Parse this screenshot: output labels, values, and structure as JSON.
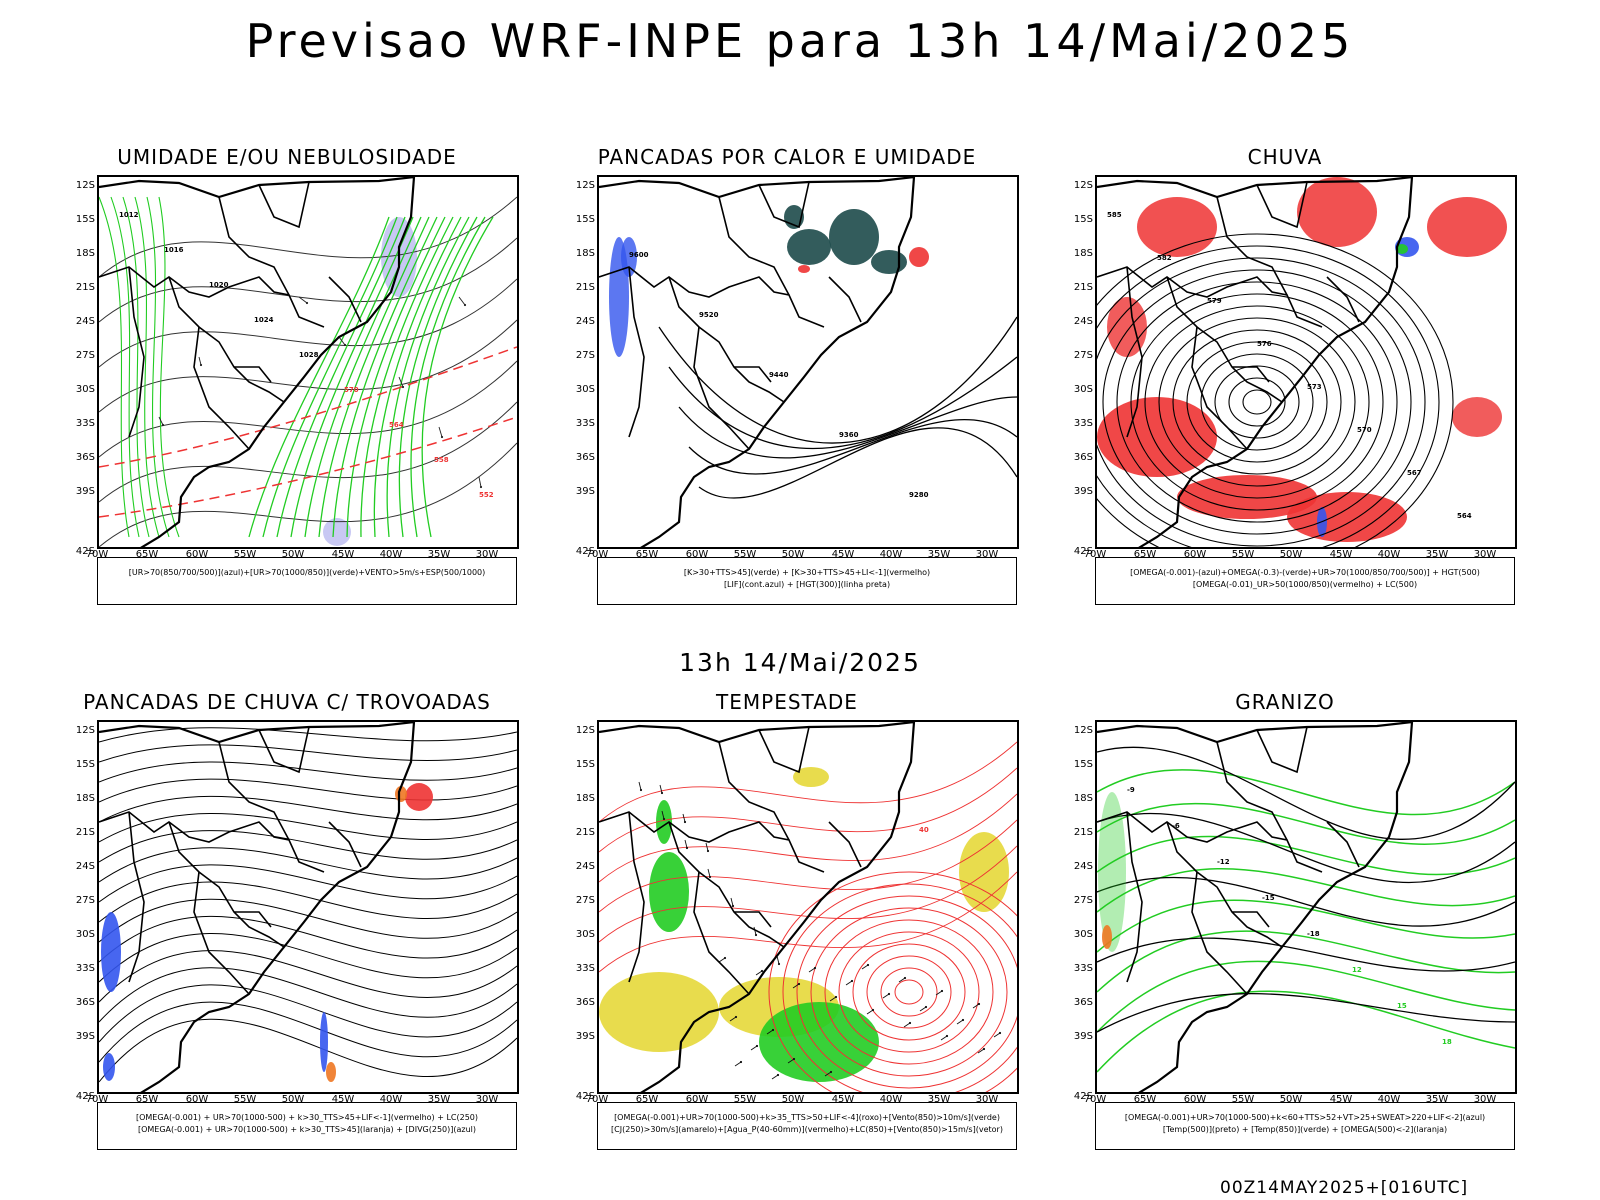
{
  "title": "Previsao WRF-INPE  para 13h 14/Mai/2025",
  "mid_title": "13h 14/Mai/2025",
  "footer": "00Z14MAY2025+[016UTC]",
  "lat_labels": [
    "12S",
    "15S",
    "18S",
    "21S",
    "24S",
    "27S",
    "30S",
    "33S",
    "36S",
    "39S",
    "42S"
  ],
  "lon_labels": [
    "70W",
    "65W",
    "60W",
    "55W",
    "50W",
    "45W",
    "40W",
    "35W",
    "30W"
  ],
  "colors": {
    "red": "#ee3333",
    "green": "#22cc22",
    "blue": "#3355ee",
    "dark_teal": "#1d4a4a",
    "yellow": "#e6d83a",
    "orange": "#ee7722",
    "lavender": "#b0b0ee",
    "black": "#000000"
  },
  "panels": [
    {
      "title": "UMIDADE E/OU NEBULOSIDADE",
      "legend": [
        "[UR>70(850/700/500)](azul)+[UR>70(1000/850)](verde)+VENTO>5m/s+ESP(500/1000)"
      ],
      "contour_labels": [
        "1012",
        "1016",
        "1020",
        "1024",
        "1028",
        "570",
        "564",
        "558",
        "552"
      ]
    },
    {
      "title": "PANCADAS POR CALOR E UMIDADE",
      "legend": [
        "[K>30+TTS>45](verde) + [K>30+TTS>45+LI<-1](vermelho)",
        "[LIF](cont.azul) + [HGT(300)](linha preta)"
      ],
      "contour_labels": [
        "9600",
        "9520",
        "9440",
        "9360",
        "9280"
      ]
    },
    {
      "title": "CHUVA",
      "legend": [
        "[OMEGA(-0.001)-(azul)+OMEGA(-0.3)-(verde)+UR>70(1000/850/700/500)] + HGT(500)",
        "[OMEGA(-0.01)_UR>50(1000/850)(vermelho) + LC(500)"
      ],
      "contour_labels": [
        "585",
        "582",
        "579",
        "576",
        "573",
        "570",
        "567",
        "564"
      ]
    },
    {
      "title": "PANCADAS DE CHUVA C/ TROVOADAS",
      "legend": [
        "[OMEGA(-0.001) + UR>70(1000-500) + k>30_TTS>45+LIF<-1](vermelho) + LC(250)",
        "[OMEGA(-0.001) + UR>70(1000-500) + k>30_TTS>45](laranja) + [DIVG(250)](azul)"
      ],
      "contour_labels": []
    },
    {
      "title": "TEMPESTADE",
      "legend": [
        "[OMEGA(-0.001)+UR>70(1000-500)+k>35_TTS>50+LIF<-4](roxo)+[Vento(850)>10m/s](verde)",
        "[CJ(250)>30m/s](amarelo)+[Agua_P(40-60mm)](vermelho)+LC(850)+[Vento(850)>15m/s](vetor)"
      ],
      "contour_labels": [
        "40"
      ]
    },
    {
      "title": "GRANIZO",
      "legend": [
        "[OMEGA(-0.001)+UR>70(1000-500)+k<60+TTS>52+VT>25+SWEAT>220+LIF<-2](azul)",
        "[Temp(500)](preto) + [Temp(850)](verde) + [OMEGA(500)<-2](laranja)"
      ],
      "contour_labels": [
        "-9",
        "-6",
        "-12",
        "-15",
        "-18",
        "12",
        "15",
        "18"
      ]
    }
  ]
}
